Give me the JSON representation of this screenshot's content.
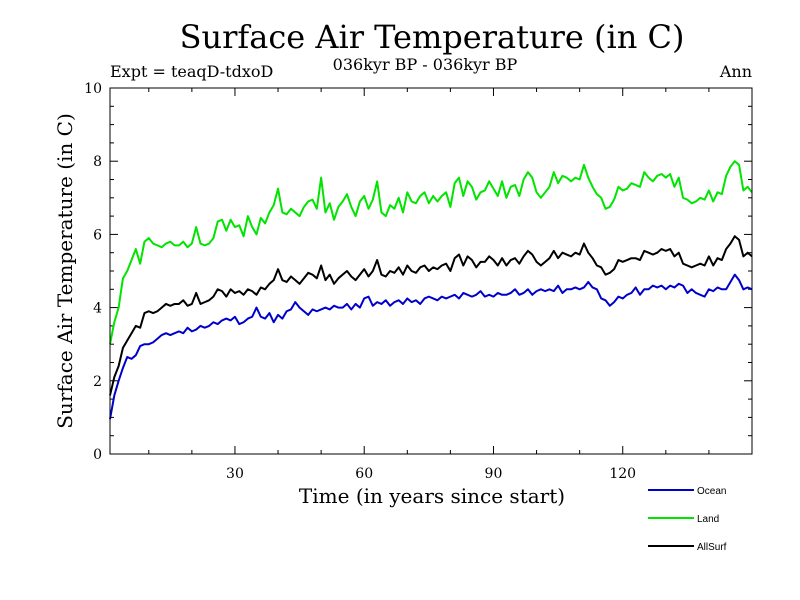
{
  "chart_data": {
    "type": "line",
    "title": "Surface Air Temperature (in C)",
    "subtitle_left": "Expt = teaqD-tdxoD",
    "subtitle_center": "036kyr BP - 036kyr BP",
    "subtitle_right": "Ann",
    "xlabel": "Time (in years since start)",
    "ylabel": "Surface Air Temperature (in C)",
    "xlim": [
      1,
      150
    ],
    "ylim": [
      0,
      10
    ],
    "xticks": [
      30,
      60,
      90,
      120
    ],
    "yticks": [
      0,
      2,
      4,
      6,
      8,
      10
    ],
    "legend_position": "bottom-right",
    "x_start": 1,
    "x_step": 1,
    "series": [
      {
        "name": "Ocean",
        "color": "#0000cc",
        "values": [
          0.95,
          1.6,
          2.0,
          2.35,
          2.65,
          2.6,
          2.7,
          2.95,
          3.0,
          3.0,
          3.05,
          3.15,
          3.25,
          3.3,
          3.25,
          3.3,
          3.35,
          3.3,
          3.45,
          3.35,
          3.4,
          3.5,
          3.45,
          3.5,
          3.6,
          3.55,
          3.65,
          3.7,
          3.65,
          3.75,
          3.55,
          3.6,
          3.7,
          3.75,
          4.0,
          3.75,
          3.7,
          3.85,
          3.6,
          3.8,
          3.7,
          3.9,
          3.95,
          4.15,
          4.0,
          3.9,
          3.8,
          3.95,
          3.9,
          3.95,
          4.0,
          3.95,
          4.05,
          4.0,
          4.0,
          4.1,
          3.95,
          4.1,
          4.0,
          4.25,
          4.3,
          4.05,
          4.15,
          4.1,
          4.2,
          4.05,
          4.15,
          4.2,
          4.1,
          4.25,
          4.15,
          4.2,
          4.1,
          4.25,
          4.3,
          4.25,
          4.2,
          4.3,
          4.25,
          4.3,
          4.35,
          4.25,
          4.4,
          4.35,
          4.3,
          4.35,
          4.45,
          4.3,
          4.35,
          4.3,
          4.4,
          4.35,
          4.35,
          4.4,
          4.5,
          4.35,
          4.4,
          4.5,
          4.35,
          4.45,
          4.5,
          4.45,
          4.5,
          4.45,
          4.6,
          4.4,
          4.5,
          4.5,
          4.55,
          4.5,
          4.55,
          4.7,
          4.55,
          4.5,
          4.25,
          4.2,
          4.05,
          4.15,
          4.3,
          4.25,
          4.35,
          4.4,
          4.55,
          4.35,
          4.5,
          4.5,
          4.6,
          4.55,
          4.6,
          4.5,
          4.6,
          4.55,
          4.65,
          4.6,
          4.4,
          4.5,
          4.4,
          4.35,
          4.3,
          4.5,
          4.45,
          4.55,
          4.5,
          4.5,
          4.7,
          4.9,
          4.75,
          4.5,
          4.55,
          4.5
        ]
      },
      {
        "name": "Land",
        "color": "#00e400",
        "values": [
          3.0,
          3.6,
          4.0,
          4.8,
          5.0,
          5.3,
          5.6,
          5.2,
          5.8,
          5.9,
          5.75,
          5.7,
          5.65,
          5.75,
          5.8,
          5.7,
          5.7,
          5.8,
          5.65,
          5.75,
          6.2,
          5.75,
          5.7,
          5.75,
          5.9,
          6.35,
          6.4,
          6.1,
          6.4,
          6.2,
          6.25,
          5.95,
          6.5,
          6.2,
          6.0,
          6.45,
          6.3,
          6.6,
          6.8,
          7.25,
          6.6,
          6.55,
          6.7,
          6.6,
          6.5,
          6.75,
          6.9,
          6.95,
          6.7,
          7.55,
          6.6,
          6.85,
          6.4,
          6.75,
          6.9,
          7.1,
          6.75,
          6.5,
          6.9,
          7.05,
          6.7,
          6.95,
          7.45,
          6.6,
          6.5,
          6.8,
          6.7,
          7.0,
          6.6,
          7.15,
          6.9,
          6.85,
          7.05,
          7.15,
          6.85,
          7.05,
          6.9,
          7.05,
          7.15,
          6.75,
          7.4,
          7.55,
          7.05,
          7.45,
          7.3,
          6.95,
          7.15,
          7.2,
          7.45,
          7.25,
          7.05,
          7.45,
          7.0,
          7.3,
          7.35,
          7.05,
          7.5,
          7.7,
          7.55,
          7.15,
          7.0,
          7.15,
          7.3,
          7.7,
          7.4,
          7.6,
          7.55,
          7.45,
          7.55,
          7.5,
          7.9,
          7.55,
          7.3,
          7.1,
          7.0,
          6.7,
          6.75,
          6.95,
          7.3,
          7.2,
          7.25,
          7.4,
          7.35,
          7.3,
          7.7,
          7.55,
          7.45,
          7.6,
          7.65,
          7.55,
          7.65,
          7.3,
          7.55,
          7.0,
          6.95,
          6.85,
          6.9,
          7.0,
          6.95,
          7.2,
          6.9,
          7.15,
          7.1,
          7.6,
          7.85,
          8.0,
          7.9,
          7.2,
          7.3,
          7.15
        ]
      },
      {
        "name": "AllSurf",
        "color": "#000000",
        "values": [
          1.6,
          2.1,
          2.4,
          2.9,
          3.1,
          3.3,
          3.5,
          3.45,
          3.85,
          3.9,
          3.85,
          3.9,
          4.0,
          4.1,
          4.05,
          4.1,
          4.1,
          4.2,
          4.05,
          4.1,
          4.4,
          4.1,
          4.15,
          4.2,
          4.3,
          4.5,
          4.45,
          4.3,
          4.5,
          4.4,
          4.45,
          4.35,
          4.5,
          4.45,
          4.35,
          4.55,
          4.5,
          4.65,
          4.75,
          5.05,
          4.75,
          4.7,
          4.85,
          4.75,
          4.65,
          4.8,
          4.95,
          4.9,
          4.8,
          5.15,
          4.75,
          4.9,
          4.65,
          4.8,
          4.9,
          5.0,
          4.85,
          4.75,
          4.9,
          5.05,
          4.85,
          5.0,
          5.3,
          4.9,
          4.85,
          5.0,
          4.95,
          5.1,
          4.9,
          5.15,
          5.0,
          4.95,
          5.1,
          5.15,
          5.0,
          5.1,
          5.05,
          5.15,
          5.2,
          5.0,
          5.35,
          5.45,
          5.15,
          5.4,
          5.3,
          5.1,
          5.25,
          5.25,
          5.4,
          5.3,
          5.15,
          5.35,
          5.15,
          5.3,
          5.35,
          5.2,
          5.4,
          5.55,
          5.45,
          5.25,
          5.15,
          5.25,
          5.35,
          5.55,
          5.35,
          5.5,
          5.45,
          5.4,
          5.5,
          5.45,
          5.75,
          5.5,
          5.35,
          5.15,
          5.1,
          4.9,
          4.95,
          5.05,
          5.3,
          5.25,
          5.3,
          5.35,
          5.35,
          5.3,
          5.55,
          5.5,
          5.45,
          5.5,
          5.6,
          5.55,
          5.6,
          5.4,
          5.5,
          5.2,
          5.15,
          5.1,
          5.15,
          5.2,
          5.15,
          5.4,
          5.15,
          5.35,
          5.3,
          5.6,
          5.75,
          5.95,
          5.85,
          5.4,
          5.5,
          5.4
        ]
      }
    ]
  }
}
